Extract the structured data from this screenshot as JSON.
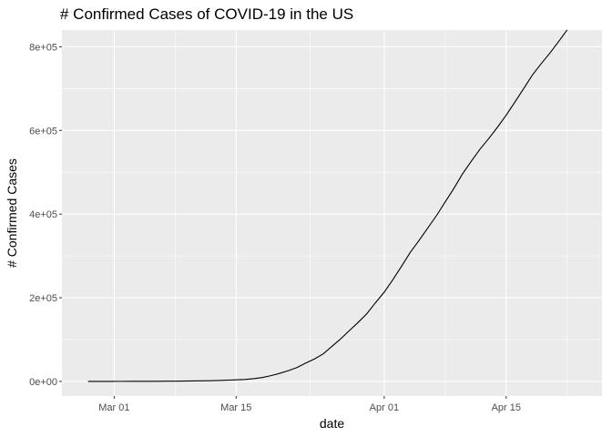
{
  "chart_data": {
    "type": "line",
    "title": "# Confirmed Cases of COVID-19 in the US",
    "xlabel": "date",
    "ylabel": "# Confirmed Cases",
    "x_ticks": [
      "Mar 01",
      "Mar 15",
      "Apr 01",
      "Apr 15"
    ],
    "y_ticks": [
      "0e+00",
      "2e+05",
      "4e+05",
      "6e+05",
      "8e+05"
    ],
    "ylim": [
      -35000,
      840000
    ],
    "xlim": [
      "2020-02-24",
      "2020-04-26"
    ],
    "grid": true,
    "background": "#ebebeb",
    "grid_color": "#ffffff",
    "line_color": "#000000",
    "series": [
      {
        "x": [
          "2020-02-27",
          "2020-02-28",
          "2020-02-29",
          "2020-03-01",
          "2020-03-02",
          "2020-03-03",
          "2020-03-04",
          "2020-03-05",
          "2020-03-06",
          "2020-03-07",
          "2020-03-08",
          "2020-03-09",
          "2020-03-10",
          "2020-03-11",
          "2020-03-12",
          "2020-03-13",
          "2020-03-14",
          "2020-03-15",
          "2020-03-16",
          "2020-03-17",
          "2020-03-18",
          "2020-03-19",
          "2020-03-20",
          "2020-03-21",
          "2020-03-22",
          "2020-03-23",
          "2020-03-24",
          "2020-03-25",
          "2020-03-26",
          "2020-03-27",
          "2020-03-28",
          "2020-03-29",
          "2020-03-30",
          "2020-03-31",
          "2020-04-01",
          "2020-04-02",
          "2020-04-03",
          "2020-04-04",
          "2020-04-05",
          "2020-04-06",
          "2020-04-07",
          "2020-04-08",
          "2020-04-09",
          "2020-04-10",
          "2020-04-11",
          "2020-04-12",
          "2020-04-13",
          "2020-04-14",
          "2020-04-15",
          "2020-04-16",
          "2020-04-17",
          "2020-04-18",
          "2020-04-19",
          "2020-04-20",
          "2020-04-21",
          "2020-04-22"
        ],
        "values": [
          60,
          62,
          70,
          75,
          100,
          124,
          158,
          221,
          319,
          435,
          541,
          704,
          994,
          1301,
          1697,
          2247,
          2943,
          3680,
          4663,
          6411,
          9197,
          13747,
          19273,
          25600,
          33276,
          43847,
          53740,
          65778,
          83836,
          101657,
          121478,
          140886,
          161807,
          188172,
          213372,
          243453,
          275586,
          308850,
          337072,
          366667,
          396223,
          429052,
          461437,
          496535,
          526396,
          555313,
          580619,
          607670,
          636350,
          667592,
          699706,
          732197,
          759086,
          784326,
          811865,
          840351
        ]
      }
    ]
  }
}
